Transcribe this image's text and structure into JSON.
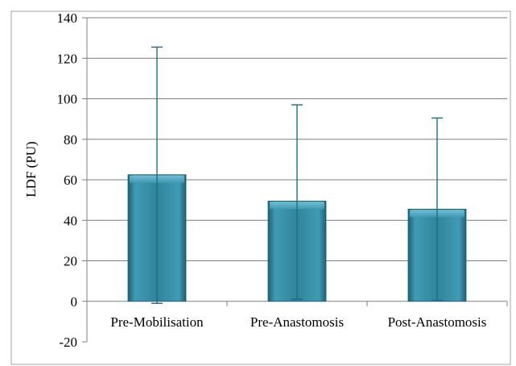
{
  "chart_data": {
    "type": "bar",
    "title": "",
    "xlabel": "",
    "ylabel": "LDF (PU)",
    "ylim": [
      -20,
      140
    ],
    "yticks": [
      -20,
      0,
      20,
      40,
      60,
      80,
      100,
      120,
      140
    ],
    "grid": true,
    "categories": [
      "Pre-Mobilisation",
      "Pre-Anastomosis",
      "Post-Anastomosis"
    ],
    "values": [
      62.5,
      49.5,
      45.5
    ],
    "error_bars": [
      {
        "low": -1,
        "high": 125.5
      },
      {
        "low": 1,
        "high": 97
      },
      {
        "low": 0.5,
        "high": 90.5
      }
    ],
    "colors": {
      "bar": "#31849b",
      "bar_light": "#5cb0c8",
      "bar_dark": "#1f5f72",
      "error": "#1f6f80",
      "grid": "#7f7f7f",
      "axis": "#7f7f7f"
    }
  }
}
